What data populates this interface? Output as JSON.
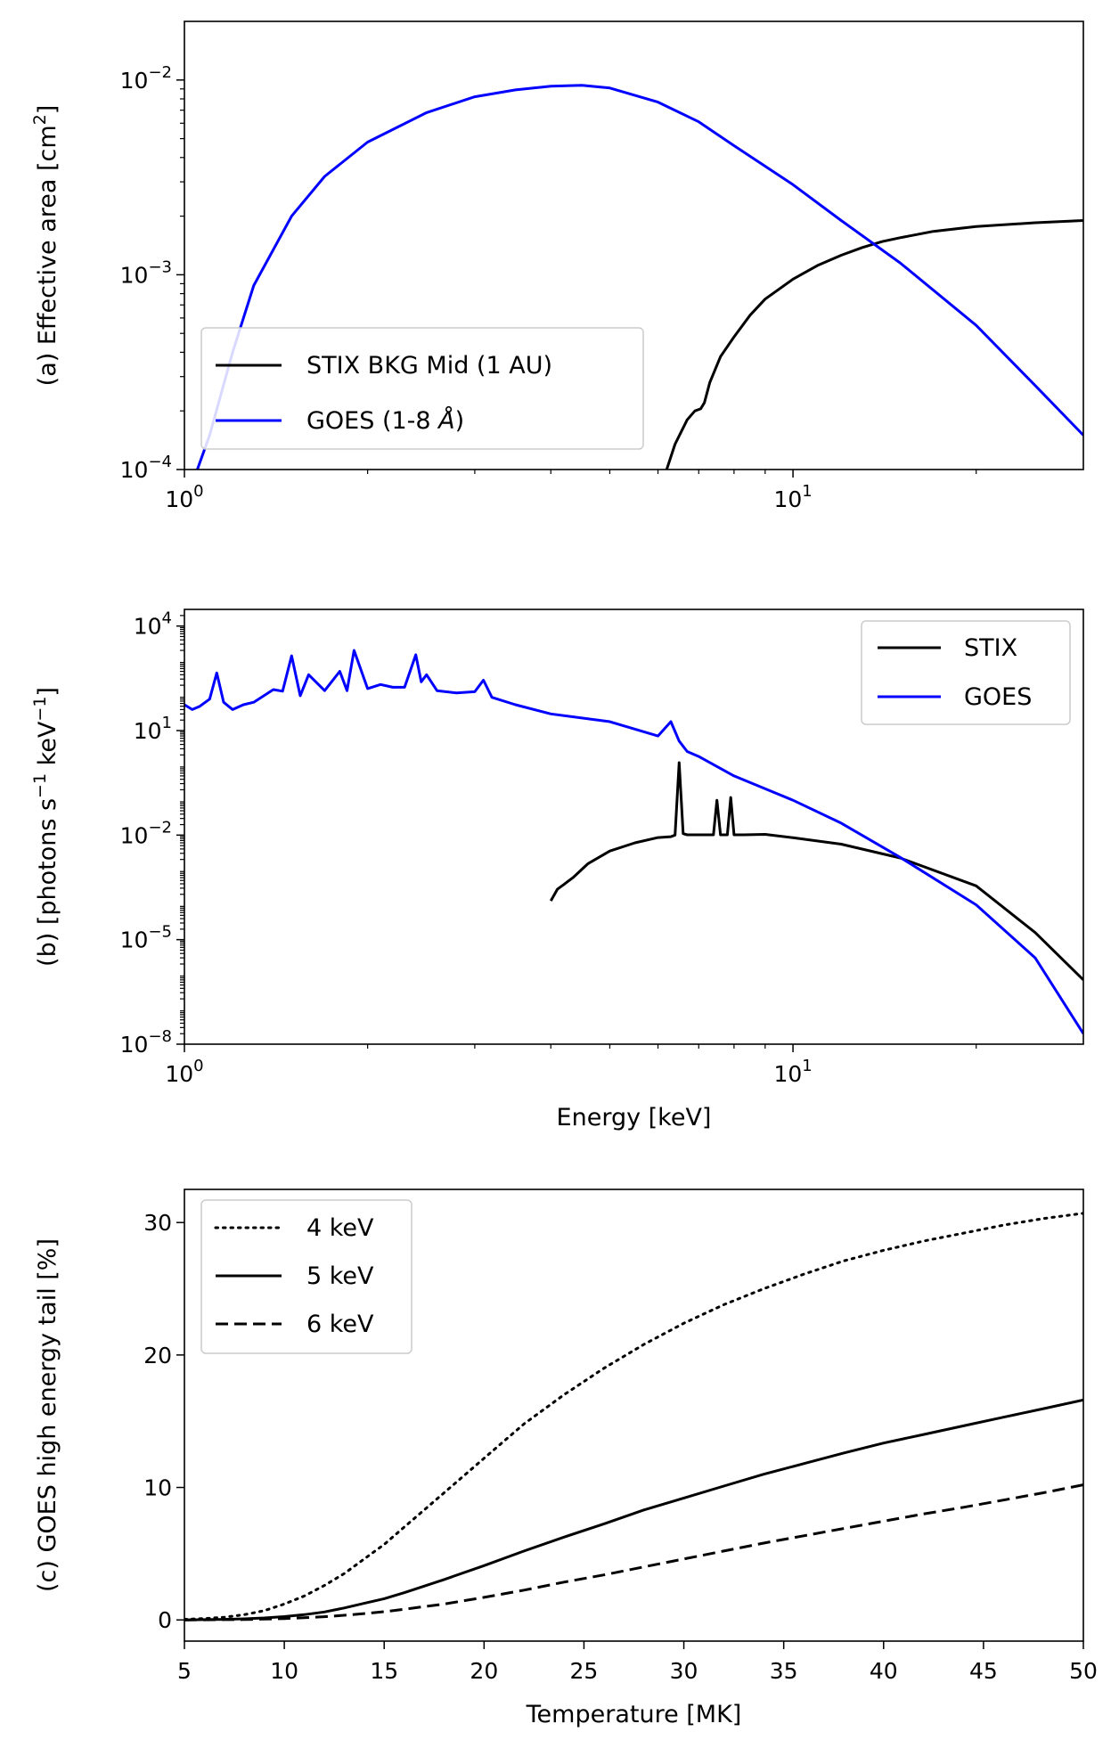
{
  "chart_data": [
    {
      "panel": "a",
      "type": "line",
      "xscale": "log",
      "yscale": "log",
      "xlim": [
        1,
        30
      ],
      "ylim": [
        0.0001,
        0.02
      ],
      "xlabel": "",
      "ylabel": {
        "pre": "(a) Effective area [cm",
        "sup": "2",
        "post": "]"
      },
      "x_ticks": [
        {
          "value": 1,
          "base": "10",
          "exp": "0"
        },
        {
          "value": 10,
          "base": "10",
          "exp": "1"
        }
      ],
      "y_ticks": [
        {
          "value": 0.0001,
          "base": "10",
          "exp": "−4"
        },
        {
          "value": 0.001,
          "base": "10",
          "exp": "−3"
        },
        {
          "value": 0.01,
          "base": "10",
          "exp": "−2"
        }
      ],
      "legend": {
        "position": "lower-left",
        "entries": [
          {
            "label": "STIX BKG Mid (1 AU)",
            "color": "#000000",
            "style": "solid"
          },
          {
            "label_pre": "GOES (1-8 ",
            "label_sym": "Å",
            "label_post": ")",
            "color": "#0000ff",
            "style": "solid"
          }
        ]
      },
      "series": [
        {
          "name": "STIX BKG Mid (1 AU)",
          "color": "#000000",
          "style": "solid",
          "x": [
            6.2,
            6.4,
            6.7,
            6.9,
            7.05,
            7.15,
            7.3,
            7.6,
            8.0,
            8.5,
            9.0,
            10.0,
            11.0,
            12.0,
            13.0,
            14.0,
            15.0,
            17.0,
            20.0,
            25.0,
            30.0
          ],
          "y": [
            0.0001,
            0.000135,
            0.00018,
            0.0002,
            0.000205,
            0.00022,
            0.00028,
            0.00038,
            0.00048,
            0.00062,
            0.00075,
            0.00095,
            0.00112,
            0.00126,
            0.00138,
            0.00148,
            0.00155,
            0.00167,
            0.00177,
            0.00185,
            0.0019
          ]
        },
        {
          "name": "GOES (1-8 Å)",
          "color": "#0000ff",
          "style": "solid",
          "x": [
            1.05,
            1.1,
            1.2,
            1.3,
            1.5,
            1.7,
            2.0,
            2.5,
            3.0,
            3.5,
            4.0,
            4.5,
            5.0,
            6.0,
            7.0,
            8.0,
            10.0,
            12.0,
            15.0,
            20.0,
            25.0,
            30.0
          ],
          "y": [
            0.0001,
            0.00015,
            0.0004,
            0.00088,
            0.002,
            0.0032,
            0.0048,
            0.0068,
            0.0082,
            0.0089,
            0.0093,
            0.0094,
            0.0091,
            0.0077,
            0.0061,
            0.0046,
            0.0029,
            0.0019,
            0.00115,
            0.00055,
            0.00027,
            0.00015
          ]
        }
      ]
    },
    {
      "panel": "b",
      "type": "line",
      "xscale": "log",
      "yscale": "log",
      "xlim": [
        1,
        30
      ],
      "ylim": [
        1e-08,
        30000
      ],
      "xlabel": "Energy [keV]",
      "ylabel": {
        "pre": "(b) [photons s",
        "sup1": "−1",
        "mid": " keV",
        "sup2": "−1",
        "post": "]"
      },
      "x_ticks": [
        {
          "value": 1,
          "base": "10",
          "exp": "0"
        },
        {
          "value": 10,
          "base": "10",
          "exp": "1"
        }
      ],
      "y_ticks": [
        {
          "value": 1e-08,
          "base": "10",
          "exp": "−8"
        },
        {
          "value": 1e-05,
          "base": "10",
          "exp": "−5"
        },
        {
          "value": 0.01,
          "base": "10",
          "exp": "−2"
        },
        {
          "value": 10,
          "base": "10",
          "exp": "1"
        },
        {
          "value": 10000,
          "base": "10",
          "exp": "4"
        }
      ],
      "legend": {
        "position": "top-right",
        "entries": [
          {
            "label": "STIX",
            "color": "#000000",
            "style": "solid"
          },
          {
            "label": "GOES",
            "color": "#0000ff",
            "style": "solid"
          }
        ]
      },
      "series": [
        {
          "name": "STIX",
          "color": "#000000",
          "style": "solid",
          "x": [
            4.0,
            4.1,
            4.2,
            4.35,
            4.6,
            5.0,
            5.5,
            6.0,
            6.3,
            6.4,
            6.5,
            6.6,
            6.7,
            7.0,
            7.4,
            7.5,
            7.6,
            7.7,
            7.8,
            7.9,
            8.0,
            8.1,
            8.2,
            8.3,
            9.0,
            10.0,
            12.0,
            15.0,
            20.0,
            25.0,
            30.0
          ],
          "y": [
            0.00013,
            0.00028,
            0.00038,
            0.0006,
            0.0015,
            0.0035,
            0.006,
            0.0085,
            0.009,
            0.01,
            1.2,
            0.011,
            0.0102,
            0.0102,
            0.0102,
            0.1,
            0.0102,
            0.0102,
            0.0102,
            0.12,
            0.0102,
            0.0102,
            0.0102,
            0.0102,
            0.0105,
            0.0084,
            0.0055,
            0.0022,
            0.00035,
            1.6e-05,
            7e-07
          ]
        },
        {
          "name": "GOES",
          "color": "#0000ff",
          "style": "solid",
          "x": [
            1.0,
            1.03,
            1.06,
            1.1,
            1.13,
            1.16,
            1.2,
            1.25,
            1.3,
            1.4,
            1.45,
            1.5,
            1.55,
            1.6,
            1.7,
            1.8,
            1.85,
            1.9,
            2.0,
            2.1,
            2.2,
            2.3,
            2.4,
            2.45,
            2.5,
            2.6,
            2.8,
            3.0,
            3.1,
            3.2,
            3.5,
            4.0,
            5.0,
            6.0,
            6.3,
            6.5,
            6.7,
            7.0,
            8.0,
            10.0,
            12.0,
            15.0,
            20.0,
            25.0,
            30.0
          ],
          "y": [
            55,
            40,
            50,
            80,
            450,
            65,
            40,
            55,
            65,
            150,
            135,
            1400,
            100,
            400,
            140,
            500,
            140,
            2000,
            160,
            210,
            175,
            175,
            1500,
            250,
            400,
            140,
            120,
            130,
            280,
            90,
            55,
            30,
            18,
            7,
            18,
            5,
            2.5,
            1.8,
            0.5,
            0.1,
            0.022,
            0.0023,
            0.0001,
            3e-06,
            2e-08
          ]
        }
      ]
    },
    {
      "panel": "c",
      "type": "line",
      "xscale": "linear",
      "yscale": "linear",
      "xlim": [
        5,
        50
      ],
      "ylim": [
        -1.6,
        32.5
      ],
      "xlabel": "Temperature [MK]",
      "ylabel": "(c) GOES high energy tail [%]",
      "x_ticks": [
        {
          "value": 5,
          "label": "5"
        },
        {
          "value": 10,
          "label": "10"
        },
        {
          "value": 15,
          "label": "15"
        },
        {
          "value": 20,
          "label": "20"
        },
        {
          "value": 25,
          "label": "25"
        },
        {
          "value": 30,
          "label": "30"
        },
        {
          "value": 35,
          "label": "35"
        },
        {
          "value": 40,
          "label": "40"
        },
        {
          "value": 45,
          "label": "45"
        },
        {
          "value": 50,
          "label": "50"
        }
      ],
      "y_ticks": [
        {
          "value": 0,
          "label": "0"
        },
        {
          "value": 10,
          "label": "10"
        },
        {
          "value": 20,
          "label": "20"
        },
        {
          "value": 30,
          "label": "30"
        }
      ],
      "legend": {
        "position": "top-left",
        "entries": [
          {
            "label": "4 keV",
            "color": "#000000",
            "style": "dotted"
          },
          {
            "label": "5 keV",
            "color": "#000000",
            "style": "solid"
          },
          {
            "label": "6 keV",
            "color": "#000000",
            "style": "dashed"
          }
        ]
      },
      "series": [
        {
          "name": "4 keV",
          "color": "#000000",
          "style": "dotted",
          "x": [
            5,
            6,
            7,
            8,
            9,
            10,
            11,
            12,
            13,
            14,
            15,
            16,
            17,
            18,
            20,
            22,
            24,
            26,
            28,
            30,
            32,
            34,
            36,
            38,
            40,
            42,
            44,
            46,
            48,
            50
          ],
          "y": [
            0.05,
            0.1,
            0.2,
            0.4,
            0.7,
            1.2,
            1.8,
            2.6,
            3.5,
            4.6,
            5.7,
            7.0,
            8.3,
            9.6,
            12.2,
            14.8,
            17.0,
            19.0,
            20.8,
            22.4,
            23.8,
            25.0,
            26.1,
            27.1,
            27.9,
            28.6,
            29.2,
            29.8,
            30.3,
            30.7
          ]
        },
        {
          "name": "5 keV",
          "color": "#000000",
          "style": "solid",
          "x": [
            5,
            6,
            7,
            8,
            9,
            10,
            11,
            12,
            13,
            14,
            15,
            16,
            17,
            18,
            20,
            22,
            24,
            26,
            28,
            30,
            32,
            34,
            36,
            38,
            40,
            42,
            44,
            46,
            48,
            50
          ],
          "y": [
            0.0,
            0.02,
            0.04,
            0.08,
            0.15,
            0.25,
            0.4,
            0.6,
            0.9,
            1.25,
            1.6,
            2.05,
            2.55,
            3.05,
            4.1,
            5.2,
            6.25,
            7.25,
            8.3,
            9.2,
            10.1,
            11.0,
            11.8,
            12.6,
            13.35,
            14.0,
            14.65,
            15.3,
            15.95,
            16.6
          ]
        },
        {
          "name": "6 keV",
          "color": "#000000",
          "style": "dashed",
          "x": [
            5,
            6,
            7,
            8,
            9,
            10,
            11,
            12,
            13,
            14,
            15,
            16,
            17,
            18,
            20,
            22,
            24,
            26,
            28,
            30,
            32,
            34,
            36,
            38,
            40,
            42,
            44,
            46,
            48,
            50
          ],
          "y": [
            0.0,
            0.01,
            0.02,
            0.03,
            0.06,
            0.1,
            0.16,
            0.24,
            0.35,
            0.48,
            0.62,
            0.8,
            1.0,
            1.2,
            1.7,
            2.25,
            2.85,
            3.4,
            4.0,
            4.6,
            5.2,
            5.8,
            6.35,
            6.9,
            7.45,
            8.0,
            8.5,
            9.05,
            9.6,
            10.2
          ]
        }
      ]
    }
  ]
}
